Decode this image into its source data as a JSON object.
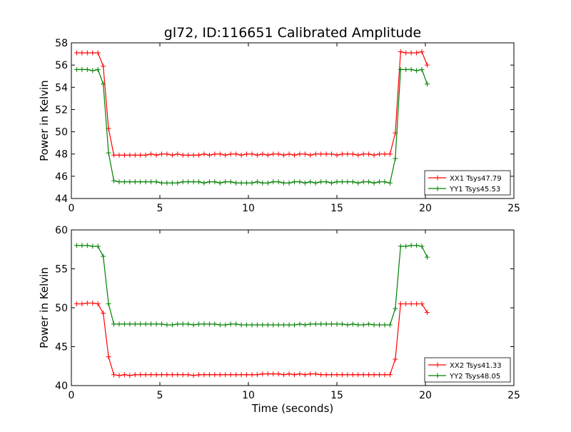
{
  "title": "gl72, ID:116651 Calibrated Amplitude",
  "chart_data": [
    {
      "type": "line",
      "title": "gl72, ID:116651 Calibrated Amplitude",
      "xlabel": "",
      "ylabel": "Power in Kelvin",
      "xlim": [
        0,
        25
      ],
      "ylim": [
        44,
        58
      ],
      "xticks": [
        "0",
        "5",
        "10",
        "15",
        "20",
        "25"
      ],
      "yticks": [
        "44",
        "46",
        "48",
        "50",
        "52",
        "54",
        "56",
        "58"
      ],
      "grid": false,
      "legend_position": "lower-right",
      "series": [
        {
          "name": "XX1 Tsys47.79",
          "color": "#ff0000",
          "x": [
            0.3,
            0.6,
            0.9,
            1.2,
            1.5,
            1.8,
            2.1,
            2.4,
            2.7,
            3.0,
            3.3,
            3.6,
            3.9,
            4.2,
            4.5,
            4.8,
            5.1,
            5.4,
            5.7,
            6.0,
            6.3,
            6.6,
            6.9,
            7.2,
            7.5,
            7.8,
            8.1,
            8.4,
            8.7,
            9.0,
            9.3,
            9.6,
            9.9,
            10.2,
            10.5,
            10.8,
            11.1,
            11.4,
            11.7,
            12.0,
            12.3,
            12.6,
            12.9,
            13.2,
            13.5,
            13.8,
            14.1,
            14.4,
            14.7,
            15.0,
            15.3,
            15.6,
            15.9,
            16.2,
            16.5,
            16.8,
            17.1,
            17.4,
            17.7,
            18.0,
            18.3,
            18.6,
            18.9,
            19.2,
            19.5,
            19.8,
            20.1
          ],
          "y": [
            57.1,
            57.1,
            57.1,
            57.1,
            57.1,
            55.9,
            50.3,
            47.9,
            47.9,
            47.9,
            47.9,
            47.9,
            47.9,
            47.9,
            48.0,
            47.9,
            48.0,
            48.0,
            47.9,
            48.0,
            47.9,
            47.9,
            47.9,
            47.9,
            48.0,
            47.9,
            48.0,
            48.0,
            47.9,
            48.0,
            48.0,
            47.9,
            48.0,
            48.0,
            47.9,
            48.0,
            47.9,
            48.0,
            48.0,
            47.9,
            48.0,
            47.9,
            48.0,
            48.0,
            47.9,
            48.0,
            48.0,
            48.0,
            48.0,
            47.9,
            48.0,
            48.0,
            48.0,
            47.9,
            48.0,
            48.0,
            47.9,
            48.0,
            48.0,
            48.0,
            49.9,
            57.2,
            57.1,
            57.1,
            57.1,
            57.2,
            56.0
          ]
        },
        {
          "name": "YY1 Tsys45.53",
          "color": "#008000",
          "x": [
            0.3,
            0.6,
            0.9,
            1.2,
            1.5,
            1.8,
            2.1,
            2.4,
            2.7,
            3.0,
            3.3,
            3.6,
            3.9,
            4.2,
            4.5,
            4.8,
            5.1,
            5.4,
            5.7,
            6.0,
            6.3,
            6.6,
            6.9,
            7.2,
            7.5,
            7.8,
            8.1,
            8.4,
            8.7,
            9.0,
            9.3,
            9.6,
            9.9,
            10.2,
            10.5,
            10.8,
            11.1,
            11.4,
            11.7,
            12.0,
            12.3,
            12.6,
            12.9,
            13.2,
            13.5,
            13.8,
            14.1,
            14.4,
            14.7,
            15.0,
            15.3,
            15.6,
            15.9,
            16.2,
            16.5,
            16.8,
            17.1,
            17.4,
            17.7,
            18.0,
            18.3,
            18.6,
            18.9,
            19.2,
            19.5,
            19.8,
            20.1
          ],
          "y": [
            55.6,
            55.6,
            55.6,
            55.5,
            55.6,
            54.3,
            48.1,
            45.6,
            45.5,
            45.5,
            45.5,
            45.5,
            45.5,
            45.5,
            45.5,
            45.5,
            45.4,
            45.4,
            45.4,
            45.4,
            45.5,
            45.5,
            45.5,
            45.5,
            45.4,
            45.5,
            45.5,
            45.4,
            45.5,
            45.5,
            45.4,
            45.4,
            45.4,
            45.4,
            45.5,
            45.4,
            45.4,
            45.5,
            45.5,
            45.4,
            45.4,
            45.5,
            45.5,
            45.4,
            45.5,
            45.4,
            45.5,
            45.5,
            45.4,
            45.5,
            45.5,
            45.5,
            45.5,
            45.4,
            45.5,
            45.5,
            45.4,
            45.5,
            45.5,
            45.4,
            47.6,
            55.6,
            55.6,
            55.6,
            55.5,
            55.6,
            54.3
          ]
        }
      ]
    },
    {
      "type": "line",
      "title": "",
      "xlabel": "Time (seconds)",
      "ylabel": "Power in Kelvin",
      "xlim": [
        0,
        25
      ],
      "ylim": [
        40,
        60
      ],
      "xticks": [
        "0",
        "5",
        "10",
        "15",
        "20",
        "25"
      ],
      "yticks": [
        "40",
        "45",
        "50",
        "55",
        "60"
      ],
      "grid": false,
      "legend_position": "lower-right",
      "series": [
        {
          "name": "XX2 Tsys41.33",
          "color": "#ff0000",
          "x": [
            0.3,
            0.6,
            0.9,
            1.2,
            1.5,
            1.8,
            2.1,
            2.4,
            2.7,
            3.0,
            3.3,
            3.6,
            3.9,
            4.2,
            4.5,
            4.8,
            5.1,
            5.4,
            5.7,
            6.0,
            6.3,
            6.6,
            6.9,
            7.2,
            7.5,
            7.8,
            8.1,
            8.4,
            8.7,
            9.0,
            9.3,
            9.6,
            9.9,
            10.2,
            10.5,
            10.8,
            11.1,
            11.4,
            11.7,
            12.0,
            12.3,
            12.6,
            12.9,
            13.2,
            13.5,
            13.8,
            14.1,
            14.4,
            14.7,
            15.0,
            15.3,
            15.6,
            15.9,
            16.2,
            16.5,
            16.8,
            17.1,
            17.4,
            17.7,
            18.0,
            18.3,
            18.6,
            18.9,
            19.2,
            19.5,
            19.8,
            20.1
          ],
          "y": [
            50.5,
            50.5,
            50.6,
            50.6,
            50.5,
            49.3,
            43.7,
            41.4,
            41.3,
            41.4,
            41.3,
            41.4,
            41.4,
            41.4,
            41.4,
            41.4,
            41.4,
            41.4,
            41.4,
            41.4,
            41.4,
            41.4,
            41.3,
            41.4,
            41.4,
            41.4,
            41.4,
            41.4,
            41.4,
            41.4,
            41.4,
            41.4,
            41.4,
            41.4,
            41.4,
            41.5,
            41.5,
            41.5,
            41.5,
            41.4,
            41.5,
            41.4,
            41.5,
            41.4,
            41.5,
            41.5,
            41.4,
            41.4,
            41.4,
            41.4,
            41.4,
            41.4,
            41.4,
            41.4,
            41.4,
            41.4,
            41.4,
            41.4,
            41.4,
            41.4,
            43.4,
            50.5,
            50.5,
            50.5,
            50.5,
            50.5,
            49.4
          ]
        },
        {
          "name": "YY2 Tsys48.05",
          "color": "#008000",
          "x": [
            0.3,
            0.6,
            0.9,
            1.2,
            1.5,
            1.8,
            2.1,
            2.4,
            2.7,
            3.0,
            3.3,
            3.6,
            3.9,
            4.2,
            4.5,
            4.8,
            5.1,
            5.4,
            5.7,
            6.0,
            6.3,
            6.6,
            6.9,
            7.2,
            7.5,
            7.8,
            8.1,
            8.4,
            8.7,
            9.0,
            9.3,
            9.6,
            9.9,
            10.2,
            10.5,
            10.8,
            11.1,
            11.4,
            11.7,
            12.0,
            12.3,
            12.6,
            12.9,
            13.2,
            13.5,
            13.8,
            14.1,
            14.4,
            14.7,
            15.0,
            15.3,
            15.6,
            15.9,
            16.2,
            16.5,
            16.8,
            17.1,
            17.4,
            17.7,
            18.0,
            18.3,
            18.6,
            18.9,
            19.2,
            19.5,
            19.8,
            20.1
          ],
          "y": [
            58.0,
            58.0,
            58.0,
            57.9,
            57.9,
            56.6,
            50.5,
            47.9,
            47.9,
            47.9,
            47.9,
            47.9,
            47.9,
            47.9,
            47.9,
            47.9,
            47.9,
            47.8,
            47.8,
            47.9,
            47.9,
            47.9,
            47.8,
            47.9,
            47.9,
            47.9,
            47.9,
            47.8,
            47.8,
            47.9,
            47.9,
            47.8,
            47.8,
            47.8,
            47.8,
            47.8,
            47.8,
            47.8,
            47.8,
            47.8,
            47.8,
            47.8,
            47.9,
            47.8,
            47.9,
            47.9,
            47.9,
            47.9,
            47.9,
            47.9,
            47.9,
            47.8,
            47.9,
            47.8,
            47.8,
            47.9,
            47.8,
            47.8,
            47.8,
            47.8,
            49.9,
            57.9,
            57.9,
            58.0,
            58.0,
            57.9,
            56.5
          ]
        }
      ]
    }
  ]
}
